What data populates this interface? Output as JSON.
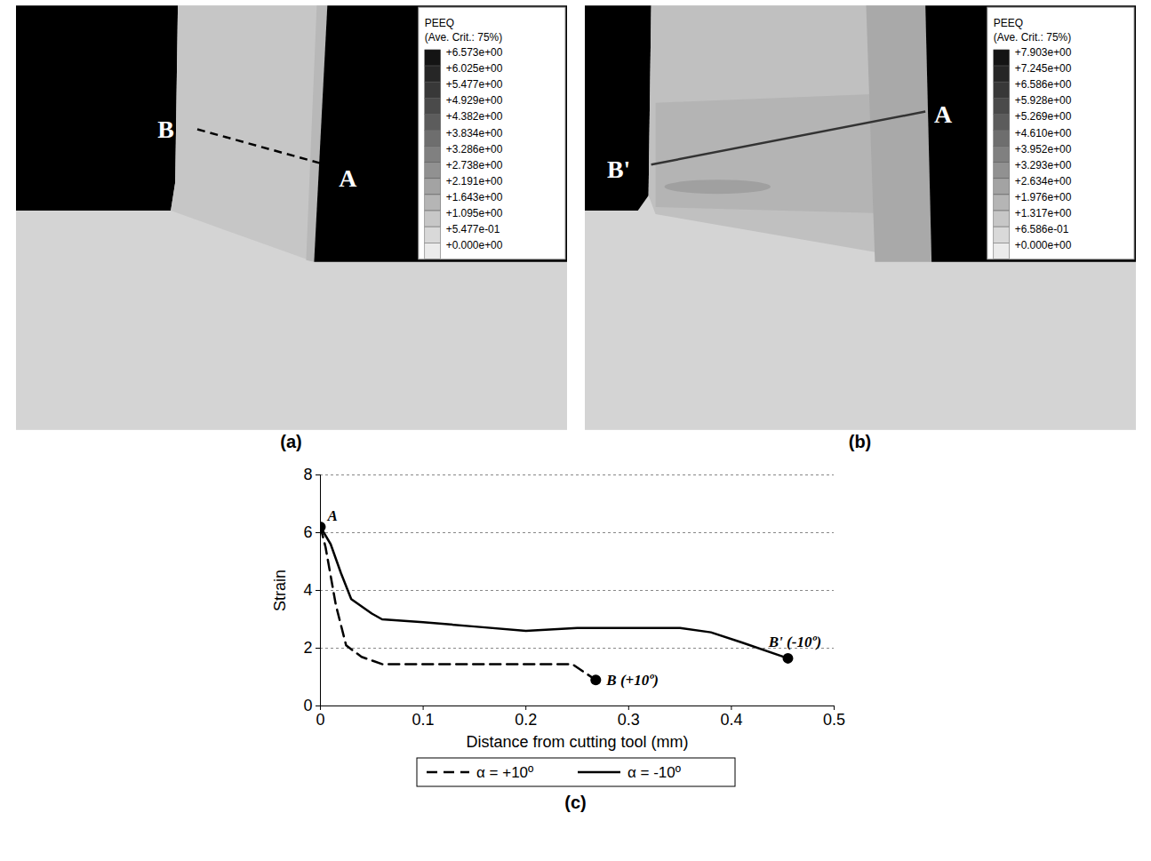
{
  "panels": [
    {
      "label": "(a)",
      "legend": {
        "title": "PEEQ",
        "subtitle": "(Ave. Crit.: 75%)",
        "values": [
          "+6.573e+00",
          "+6.025e+00",
          "+5.477e+00",
          "+4.929e+00",
          "+4.382e+00",
          "+3.834e+00",
          "+3.286e+00",
          "+2.738e+00",
          "+2.191e+00",
          "+1.643e+00",
          "+1.095e+00",
          "+5.477e-01",
          "+0.000e+00"
        ]
      },
      "points": [
        "B",
        "A"
      ]
    },
    {
      "label": "(b)",
      "legend": {
        "title": "PEEQ",
        "subtitle": "(Ave. Crit.: 75%)",
        "values": [
          "+7.903e+00",
          "+7.245e+00",
          "+6.586e+00",
          "+5.928e+00",
          "+5.269e+00",
          "+4.610e+00",
          "+3.952e+00",
          "+3.293e+00",
          "+2.634e+00",
          "+1.976e+00",
          "+1.317e+00",
          "+6.586e-01",
          "+0.000e+00"
        ]
      },
      "points": [
        "B'",
        "A"
      ]
    }
  ],
  "chart_data": {
    "type": "line",
    "label": "(c)",
    "x_label": "Distance from cutting tool (mm)",
    "y_label": "Strain",
    "xlim": [
      0,
      0.5
    ],
    "xticks": [
      0,
      0.1,
      0.2,
      0.3,
      0.4,
      0.5
    ],
    "ylim": [
      0,
      8
    ],
    "yticks": [
      0,
      2,
      4,
      6,
      8
    ],
    "grid": true,
    "legend": "bottom",
    "series": [
      {
        "name": "α = +10º",
        "color": "#000000",
        "line_style": "dashed",
        "x": [
          0,
          0.005,
          0.015,
          0.025,
          0.04,
          0.06,
          0.1,
          0.2,
          0.245,
          0.268
        ],
        "values": [
          6.2,
          5.5,
          3.5,
          2.1,
          1.7,
          1.45,
          1.45,
          1.45,
          1.45,
          0.9
        ]
      },
      {
        "name": "α = -10º",
        "color": "#000000",
        "line_style": "solid",
        "x": [
          0,
          0.01,
          0.02,
          0.03,
          0.05,
          0.06,
          0.1,
          0.15,
          0.2,
          0.25,
          0.3,
          0.35,
          0.38,
          0.41,
          0.455
        ],
        "values": [
          6.2,
          5.6,
          4.6,
          3.7,
          3.2,
          3.0,
          2.9,
          2.75,
          2.6,
          2.7,
          2.7,
          2.7,
          2.55,
          2.2,
          1.65
        ]
      }
    ],
    "annotations": [
      {
        "text": "A",
        "x": 0,
        "y": 6.2
      },
      {
        "text": "B (+10º)",
        "x": 0.268,
        "y": 0.9
      },
      {
        "text": "B' (-10º)",
        "x": 0.455,
        "y": 1.65
      }
    ]
  }
}
